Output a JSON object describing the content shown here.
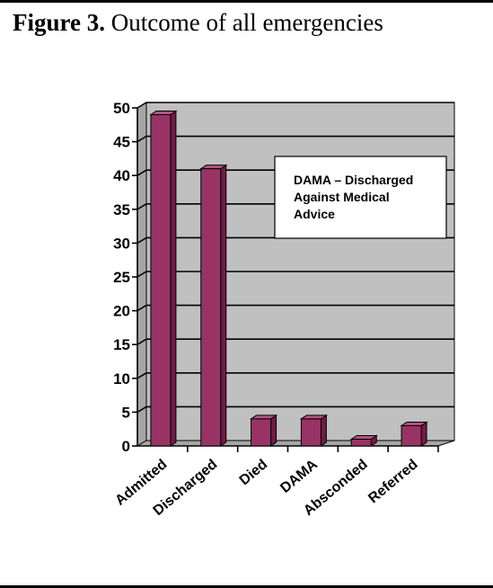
{
  "figure": {
    "label": "Figure 3.",
    "title": "Outcome of all emergencies"
  },
  "chart_data": {
    "type": "bar",
    "categories": [
      "Admitted",
      "Discharged",
      "Died",
      "DAMA",
      "Absconded",
      "Referred"
    ],
    "values": [
      49,
      41,
      4,
      4,
      1,
      3
    ],
    "ylim": [
      0,
      50
    ],
    "yticks": [
      0,
      5,
      10,
      15,
      20,
      25,
      30,
      35,
      40,
      45,
      50
    ],
    "grid": true,
    "style": "3d",
    "annotation": [
      "DAMA – Discharged",
      "Against Medical",
      "Advice"
    ],
    "colors": {
      "bar_front": "#993366",
      "bar_side": "#6b1e45",
      "bar_top": "#b5537f",
      "plot_background": "#c0c0c0",
      "wall": "#a6a6a6"
    }
  }
}
